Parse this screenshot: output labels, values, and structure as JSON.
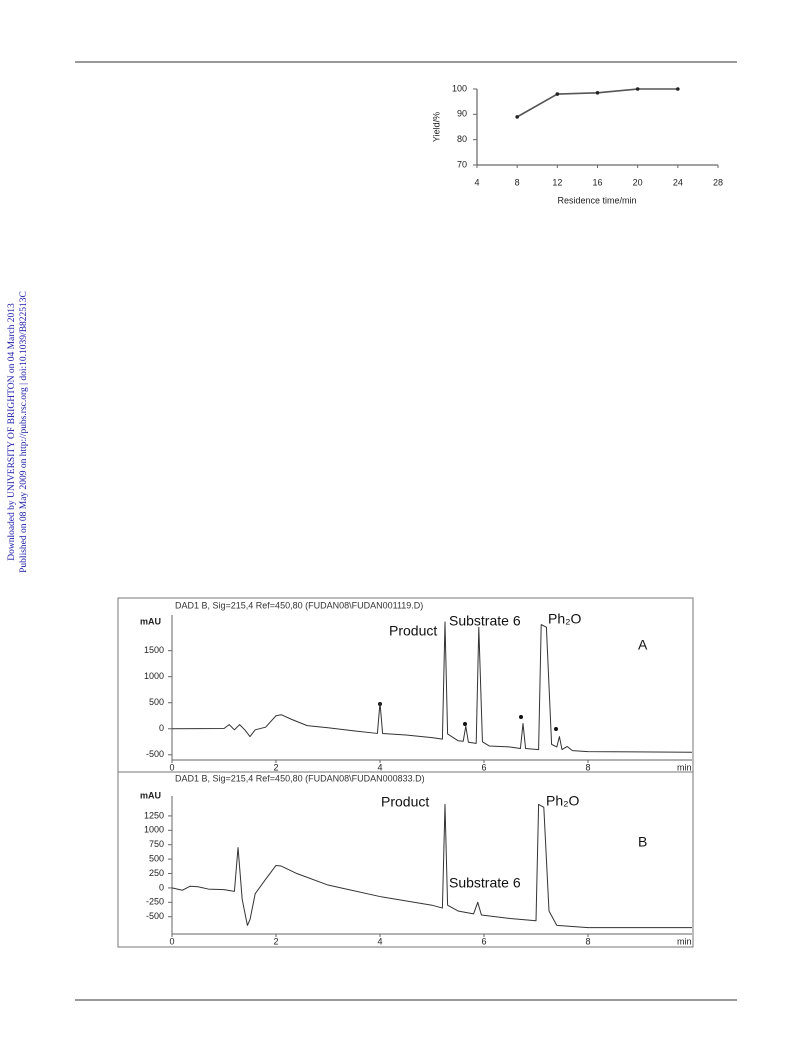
{
  "side_notes": [
    "Downloaded by UNIVERSITY OF BRIGHTON on 04 March 2013",
    "Published on 08 May 2009 on http://pubs.rsc.org | doi:10.1039/B822513C"
  ],
  "chart_data": [
    {
      "type": "line",
      "xlabel": "Residence time/min",
      "ylabel": "Yield/%",
      "x": [
        8,
        12,
        16,
        20,
        24
      ],
      "values": [
        89,
        98,
        98.5,
        100,
        100
      ],
      "color": "#555555",
      "xlim": [
        4,
        28
      ],
      "ylim": [
        70,
        100
      ],
      "xticks": [
        4,
        8,
        12,
        16,
        20,
        24,
        28
      ],
      "yticks": [
        70,
        80,
        90,
        100
      ]
    },
    {
      "type": "line",
      "title": "DAD1 B, Sig=215,4 Ref=450,80 (FUDAN08\\FUDAN001119.D)",
      "xlabel": "min",
      "ylabel": "mAU",
      "x": [
        0,
        1,
        1.1,
        1.2,
        1.3,
        1.4,
        1.5,
        1.6,
        1.8,
        2.0,
        2.1,
        2.3,
        2.6,
        3,
        3.5,
        3.95,
        4.0,
        4.05,
        4.5,
        5.0,
        5.2,
        5.25,
        5.3,
        5.5,
        5.6,
        5.65,
        5.7,
        5.85,
        5.9,
        5.97,
        6.1,
        6.5,
        6.7,
        6.75,
        6.8,
        7.05,
        7.1,
        7.2,
        7.3,
        7.4,
        7.45,
        7.5,
        7.6,
        7.7,
        8,
        10
      ],
      "values": [
        0,
        5,
        80,
        -20,
        80,
        -20,
        -150,
        -20,
        30,
        250,
        270,
        180,
        60,
        20,
        -40,
        -90,
        500,
        -90,
        -120,
        -170,
        -200,
        2050,
        -100,
        -230,
        -240,
        50,
        -260,
        -280,
        1950,
        -250,
        -330,
        -350,
        -380,
        100,
        -380,
        -400,
        2000,
        1950,
        -300,
        -350,
        -150,
        -400,
        -340,
        -420,
        -440,
        -450
      ],
      "color": "#333333",
      "xlim": [
        0,
        10
      ],
      "ylim": [
        -600,
        2300
      ],
      "xticks": [
        0,
        2,
        4,
        6,
        8
      ],
      "yticks": [
        -500,
        0,
        500,
        1000,
        1500
      ],
      "annotations": [
        "Product",
        "Substrate 6",
        "Ph₂O",
        "A"
      ]
    },
    {
      "type": "line",
      "title": "DAD1 B, Sig=215,4 Ref=450,80 (FUDAN08\\FUDAN000833.D)",
      "xlabel": "min",
      "ylabel": "mAU",
      "x": [
        0,
        0.2,
        0.35,
        0.5,
        0.7,
        1.0,
        1.2,
        1.27,
        1.35,
        1.45,
        1.5,
        1.6,
        1.8,
        2.0,
        2.1,
        2.4,
        3,
        4,
        5,
        5.2,
        5.25,
        5.3,
        5.5,
        5.8,
        5.88,
        5.95,
        6.5,
        7.0,
        7.05,
        7.15,
        7.25,
        7.4,
        8,
        10
      ],
      "values": [
        0,
        -40,
        30,
        20,
        -20,
        -30,
        -60,
        700,
        -200,
        -650,
        -550,
        -100,
        150,
        390,
        380,
        250,
        50,
        -150,
        -300,
        -350,
        1450,
        -300,
        -400,
        -450,
        -250,
        -470,
        -530,
        -570,
        1450,
        1400,
        -400,
        -650,
        -690,
        -690
      ],
      "color": "#333333",
      "xlim": [
        0,
        10
      ],
      "ylim": [
        -800,
        1700
      ],
      "xticks": [
        0,
        2,
        4,
        6,
        8
      ],
      "yticks": [
        -500,
        -250,
        0,
        250,
        500,
        750,
        1000,
        1250
      ],
      "annotations": [
        "Product",
        "Substrate 6",
        "Ph₂O",
        "B"
      ]
    }
  ]
}
